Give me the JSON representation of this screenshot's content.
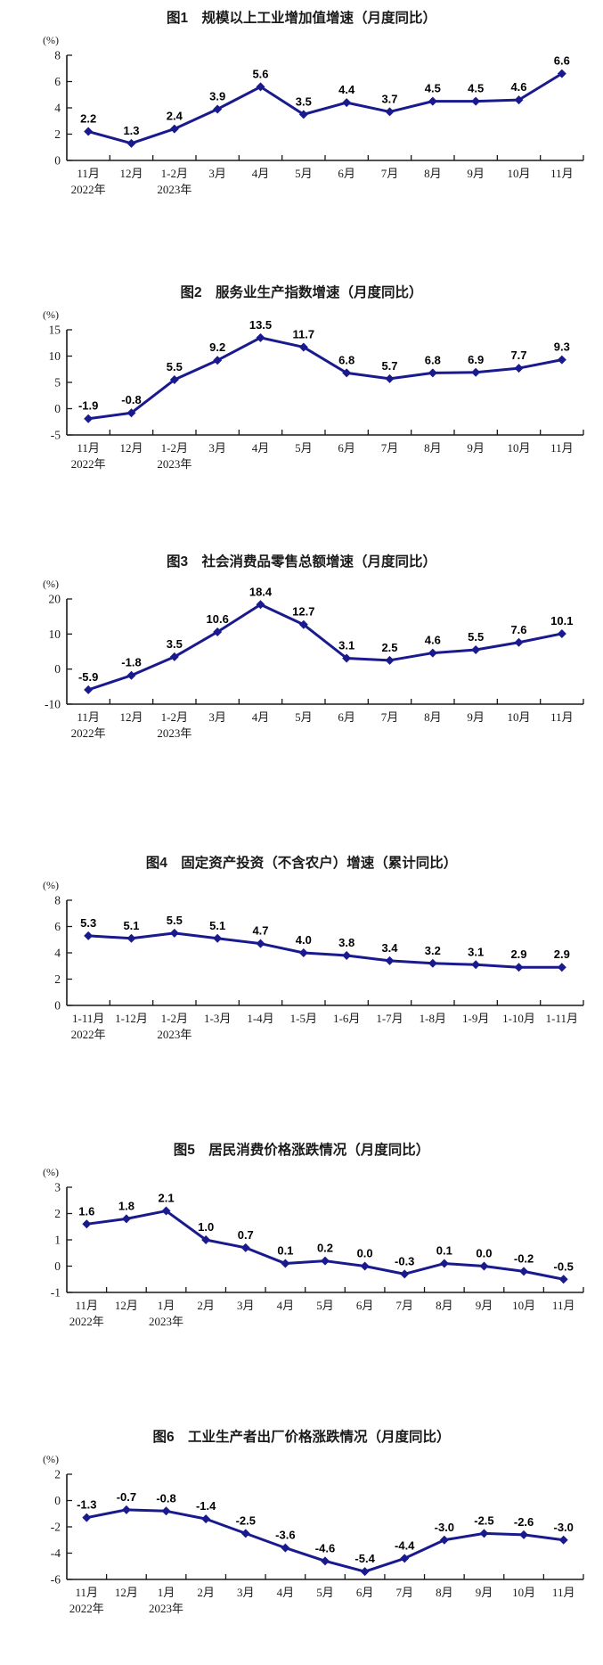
{
  "colors": {
    "line": "#1a1a8f",
    "marker": "#1a1a8f",
    "value_label": "#000000",
    "axis": "#1a1a1a",
    "tick_label": "#1a1a1a"
  },
  "chart_data": [
    {
      "type": "line",
      "title": "图1　规模以上工业增加值增速（月度同比）",
      "unit": "(%)",
      "ylim": [
        0,
        8
      ],
      "yticks": [
        0,
        2,
        4,
        6,
        8
      ],
      "grid": false,
      "legend_position": "none",
      "categories": [
        "11月",
        "12月",
        "1-2月",
        "3月",
        "4月",
        "5月",
        "6月",
        "7月",
        "8月",
        "9月",
        "10月",
        "11月"
      ],
      "year_labels": [
        {
          "index": 0,
          "text": "2022年"
        },
        {
          "index": 2,
          "text": "2023年"
        }
      ],
      "values": [
        2.2,
        1.3,
        2.4,
        3.9,
        5.6,
        3.5,
        4.4,
        3.7,
        4.5,
        4.5,
        4.6,
        6.6
      ],
      "labels": [
        "2.2",
        "1.3",
        "2.4",
        "3.9",
        "5.6",
        "3.5",
        "4.4",
        "3.7",
        "4.5",
        "4.5",
        "4.6",
        "6.6"
      ]
    },
    {
      "type": "line",
      "title": "图2　服务业生产指数增速（月度同比）",
      "unit": "(%)",
      "ylim": [
        -5,
        15
      ],
      "yticks": [
        -5,
        0,
        5,
        10,
        15
      ],
      "grid": false,
      "legend_position": "none",
      "categories": [
        "11月",
        "12月",
        "1-2月",
        "3月",
        "4月",
        "5月",
        "6月",
        "7月",
        "8月",
        "9月",
        "10月",
        "11月"
      ],
      "year_labels": [
        {
          "index": 0,
          "text": "2022年"
        },
        {
          "index": 2,
          "text": "2023年"
        }
      ],
      "values": [
        -1.9,
        -0.8,
        5.5,
        9.2,
        13.5,
        11.7,
        6.8,
        5.7,
        6.8,
        6.9,
        7.7,
        9.3
      ],
      "labels": [
        "-1.9",
        "-0.8",
        "5.5",
        "9.2",
        "13.5",
        "11.7",
        "6.8",
        "5.7",
        "6.8",
        "6.9",
        "7.7",
        "9.3"
      ]
    },
    {
      "type": "line",
      "title": "图3　社会消费品零售总额增速（月度同比）",
      "unit": "(%)",
      "ylim": [
        -10,
        20
      ],
      "yticks": [
        -10,
        0,
        10,
        20
      ],
      "grid": false,
      "legend_position": "none",
      "categories": [
        "11月",
        "12月",
        "1-2月",
        "3月",
        "4月",
        "5月",
        "6月",
        "7月",
        "8月",
        "9月",
        "10月",
        "11月"
      ],
      "year_labels": [
        {
          "index": 0,
          "text": "2022年"
        },
        {
          "index": 2,
          "text": "2023年"
        }
      ],
      "values": [
        -5.9,
        -1.8,
        3.5,
        10.6,
        18.4,
        12.7,
        3.1,
        2.5,
        4.6,
        5.5,
        7.6,
        10.1
      ],
      "labels": [
        "-5.9",
        "-1.8",
        "3.5",
        "10.6",
        "18.4",
        "12.7",
        "3.1",
        "2.5",
        "4.6",
        "5.5",
        "7.6",
        "10.1"
      ]
    },
    {
      "type": "line",
      "title": "图4　固定资产投资（不含农户）增速（累计同比）",
      "unit": "(%)",
      "ylim": [
        0,
        8
      ],
      "yticks": [
        0,
        2,
        4,
        6,
        8
      ],
      "grid": false,
      "legend_position": "none",
      "categories": [
        "1-11月",
        "1-12月",
        "1-2月",
        "1-3月",
        "1-4月",
        "1-5月",
        "1-6月",
        "1-7月",
        "1-8月",
        "1-9月",
        "1-10月",
        "1-11月"
      ],
      "year_labels": [
        {
          "index": 0,
          "text": "2022年"
        },
        {
          "index": 2,
          "text": "2023年"
        }
      ],
      "values": [
        5.3,
        5.1,
        5.5,
        5.1,
        4.7,
        4.0,
        3.8,
        3.4,
        3.2,
        3.1,
        2.9,
        2.9
      ],
      "labels": [
        "5.3",
        "5.1",
        "5.5",
        "5.1",
        "4.7",
        "4.0",
        "3.8",
        "3.4",
        "3.2",
        "3.1",
        "2.9",
        "2.9"
      ]
    },
    {
      "type": "line",
      "title": "图5　居民消费价格涨跌情况（月度同比）",
      "unit": "(%)",
      "ylim": [
        -1,
        3
      ],
      "yticks": [
        -1,
        0,
        1,
        2,
        3
      ],
      "grid": false,
      "legend_position": "none",
      "categories": [
        "11月",
        "12月",
        "1月",
        "2月",
        "3月",
        "4月",
        "5月",
        "6月",
        "7月",
        "8月",
        "9月",
        "10月",
        "11月"
      ],
      "year_labels": [
        {
          "index": 0,
          "text": "2022年"
        },
        {
          "index": 2,
          "text": "2023年"
        }
      ],
      "values": [
        1.6,
        1.8,
        2.1,
        1.0,
        0.7,
        0.1,
        0.2,
        0.0,
        -0.3,
        0.1,
        0.0,
        -0.2,
        -0.5
      ],
      "labels": [
        "1.6",
        "1.8",
        "2.1",
        "1.0",
        "0.7",
        "0.1",
        "0.2",
        "0.0",
        "-0.3",
        "0.1",
        "0.0",
        "-0.2",
        "-0.5"
      ]
    },
    {
      "type": "line",
      "title": "图6　工业生产者出厂价格涨跌情况（月度同比）",
      "unit": "(%)",
      "ylim": [
        -6,
        2
      ],
      "yticks": [
        -6,
        -4,
        -2,
        0,
        2
      ],
      "grid": false,
      "legend_position": "none",
      "categories": [
        "11月",
        "12月",
        "1月",
        "2月",
        "3月",
        "4月",
        "5月",
        "6月",
        "7月",
        "8月",
        "9月",
        "10月",
        "11月"
      ],
      "year_labels": [
        {
          "index": 0,
          "text": "2022年"
        },
        {
          "index": 2,
          "text": "2023年"
        }
      ],
      "values": [
        -1.3,
        -0.7,
        -0.8,
        -1.4,
        -2.5,
        -3.6,
        -4.6,
        -5.4,
        -4.4,
        -3.0,
        -2.5,
        -2.6,
        -3.0
      ],
      "labels": [
        "-1.3",
        "-0.7",
        "-0.8",
        "-1.4",
        "-2.5",
        "-3.6",
        "-4.6",
        "-5.4",
        "-4.4",
        "-3.0",
        "-2.5",
        "-2.6",
        "-3.0"
      ]
    }
  ]
}
